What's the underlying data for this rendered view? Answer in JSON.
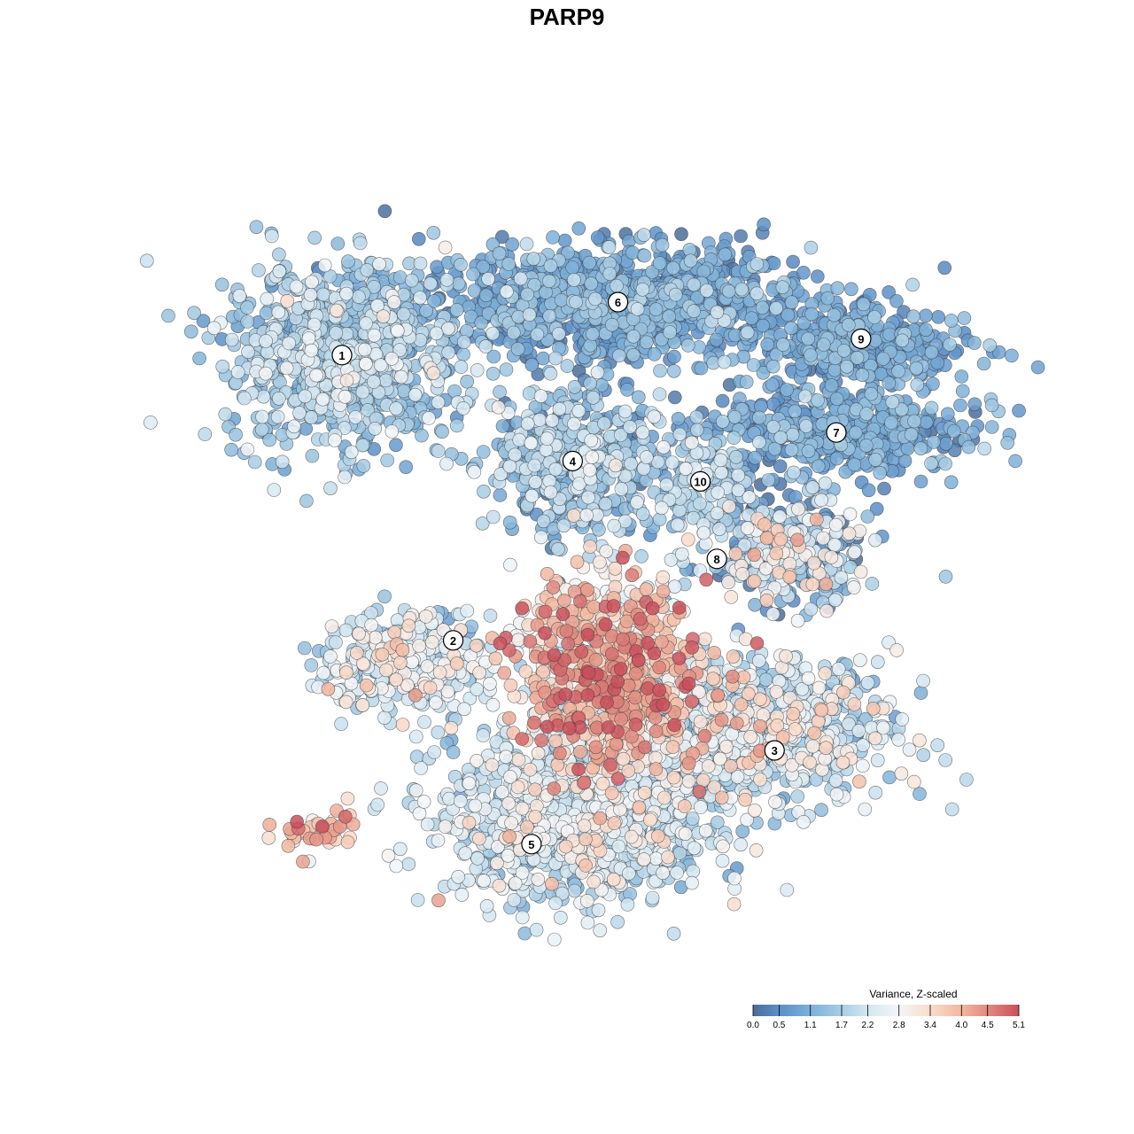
{
  "chart_data": {
    "type": "scatter",
    "title": "PARP9",
    "xlabel": "",
    "ylabel": "",
    "grid": false,
    "point_style": {
      "fill_by": "expression",
      "stroke": "#3a3a3a",
      "opacity": 0.85
    },
    "color_scale": {
      "title": "Variance, Z-scaled",
      "min": 0.0,
      "max": 5.1,
      "stops": [
        {
          "value": 0.0,
          "color": "#4a6d9a"
        },
        {
          "value": 0.5,
          "color": "#5b8fc7"
        },
        {
          "value": 1.1,
          "color": "#7eb0d8"
        },
        {
          "value": 1.7,
          "color": "#a9cde4"
        },
        {
          "value": 2.2,
          "color": "#d3e6f1"
        },
        {
          "value": 2.8,
          "color": "#f3f6f8"
        },
        {
          "value": 3.4,
          "color": "#f9dccd"
        },
        {
          "value": 4.0,
          "color": "#f1b7a0"
        },
        {
          "value": 4.5,
          "color": "#e08a80"
        },
        {
          "value": 5.1,
          "color": "#c84f5c"
        }
      ],
      "ticks": [
        "0.0",
        "0.5",
        "1.1",
        "1.7",
        "2.2",
        "2.8",
        "3.4",
        "4.0",
        "4.5",
        "5.1"
      ],
      "legend_placement": "bottom-right"
    },
    "clusters": [
      {
        "label": "1",
        "x": -0.6,
        "y": 0.52,
        "sx": 0.14,
        "sy": 0.11,
        "n": 900,
        "mean": 1.6,
        "sd": 0.55
      },
      {
        "label": "6",
        "x": 0.07,
        "y": 0.65,
        "sx": 0.24,
        "sy": 0.07,
        "n": 1000,
        "mean": 0.9,
        "sd": 0.5
      },
      {
        "label": "4",
        "x": -0.04,
        "y": 0.26,
        "sx": 0.1,
        "sy": 0.09,
        "n": 550,
        "mean": 1.4,
        "sd": 0.7
      },
      {
        "label": "10",
        "x": 0.27,
        "y": 0.21,
        "sx": 0.05,
        "sy": 0.06,
        "n": 120,
        "mean": 1.8,
        "sd": 0.4
      },
      {
        "label": "9",
        "x": 0.66,
        "y": 0.54,
        "sx": 0.13,
        "sy": 0.05,
        "n": 300,
        "mean": 0.9,
        "sd": 0.35
      },
      {
        "label": "7",
        "x": 0.6,
        "y": 0.33,
        "sx": 0.16,
        "sy": 0.06,
        "n": 450,
        "mean": 0.9,
        "sd": 0.45
      },
      {
        "label": "8",
        "x": 0.48,
        "y": 0.04,
        "sx": 0.09,
        "sy": 0.07,
        "n": 350,
        "mean": 1.6,
        "sd": 1.1
      },
      {
        "label": "2",
        "x": -0.44,
        "y": -0.24,
        "sx": 0.1,
        "sy": 0.06,
        "n": 350,
        "mean": 2.2,
        "sd": 0.7
      },
      {
        "label": "5",
        "x": -0.03,
        "y": -0.62,
        "sx": 0.16,
        "sy": 0.1,
        "n": 1100,
        "mean": 2.1,
        "sd": 0.6
      },
      {
        "label": "3",
        "x": 0.4,
        "y": -0.4,
        "sx": 0.17,
        "sy": 0.09,
        "n": 800,
        "mean": 2.1,
        "sd": 0.8
      },
      {
        "label": "",
        "x": 0.05,
        "y": -0.26,
        "sx": 0.12,
        "sy": 0.12,
        "n": 800,
        "mean": 3.5,
        "sd": 0.85
      },
      {
        "label": "",
        "x": -0.66,
        "y": -0.65,
        "sx": 0.05,
        "sy": 0.03,
        "n": 45,
        "mean": 3.8,
        "sd": 0.6
      }
    ],
    "cluster_labels": [
      {
        "label": "1",
        "x": -0.6,
        "y": 0.52
      },
      {
        "label": "6",
        "x": 0.07,
        "y": 0.65
      },
      {
        "label": "9",
        "x": 0.66,
        "y": 0.56
      },
      {
        "label": "4",
        "x": -0.04,
        "y": 0.26
      },
      {
        "label": "7",
        "x": 0.6,
        "y": 0.33
      },
      {
        "label": "10",
        "x": 0.27,
        "y": 0.21
      },
      {
        "label": "8",
        "x": 0.31,
        "y": 0.02
      },
      {
        "label": "2",
        "x": -0.33,
        "y": -0.18
      },
      {
        "label": "3",
        "x": 0.45,
        "y": -0.45
      },
      {
        "label": "5",
        "x": -0.14,
        "y": -0.68
      }
    ],
    "xlim": [
      -1.0,
      1.0
    ],
    "ylim": [
      -1.0,
      1.0
    ]
  }
}
